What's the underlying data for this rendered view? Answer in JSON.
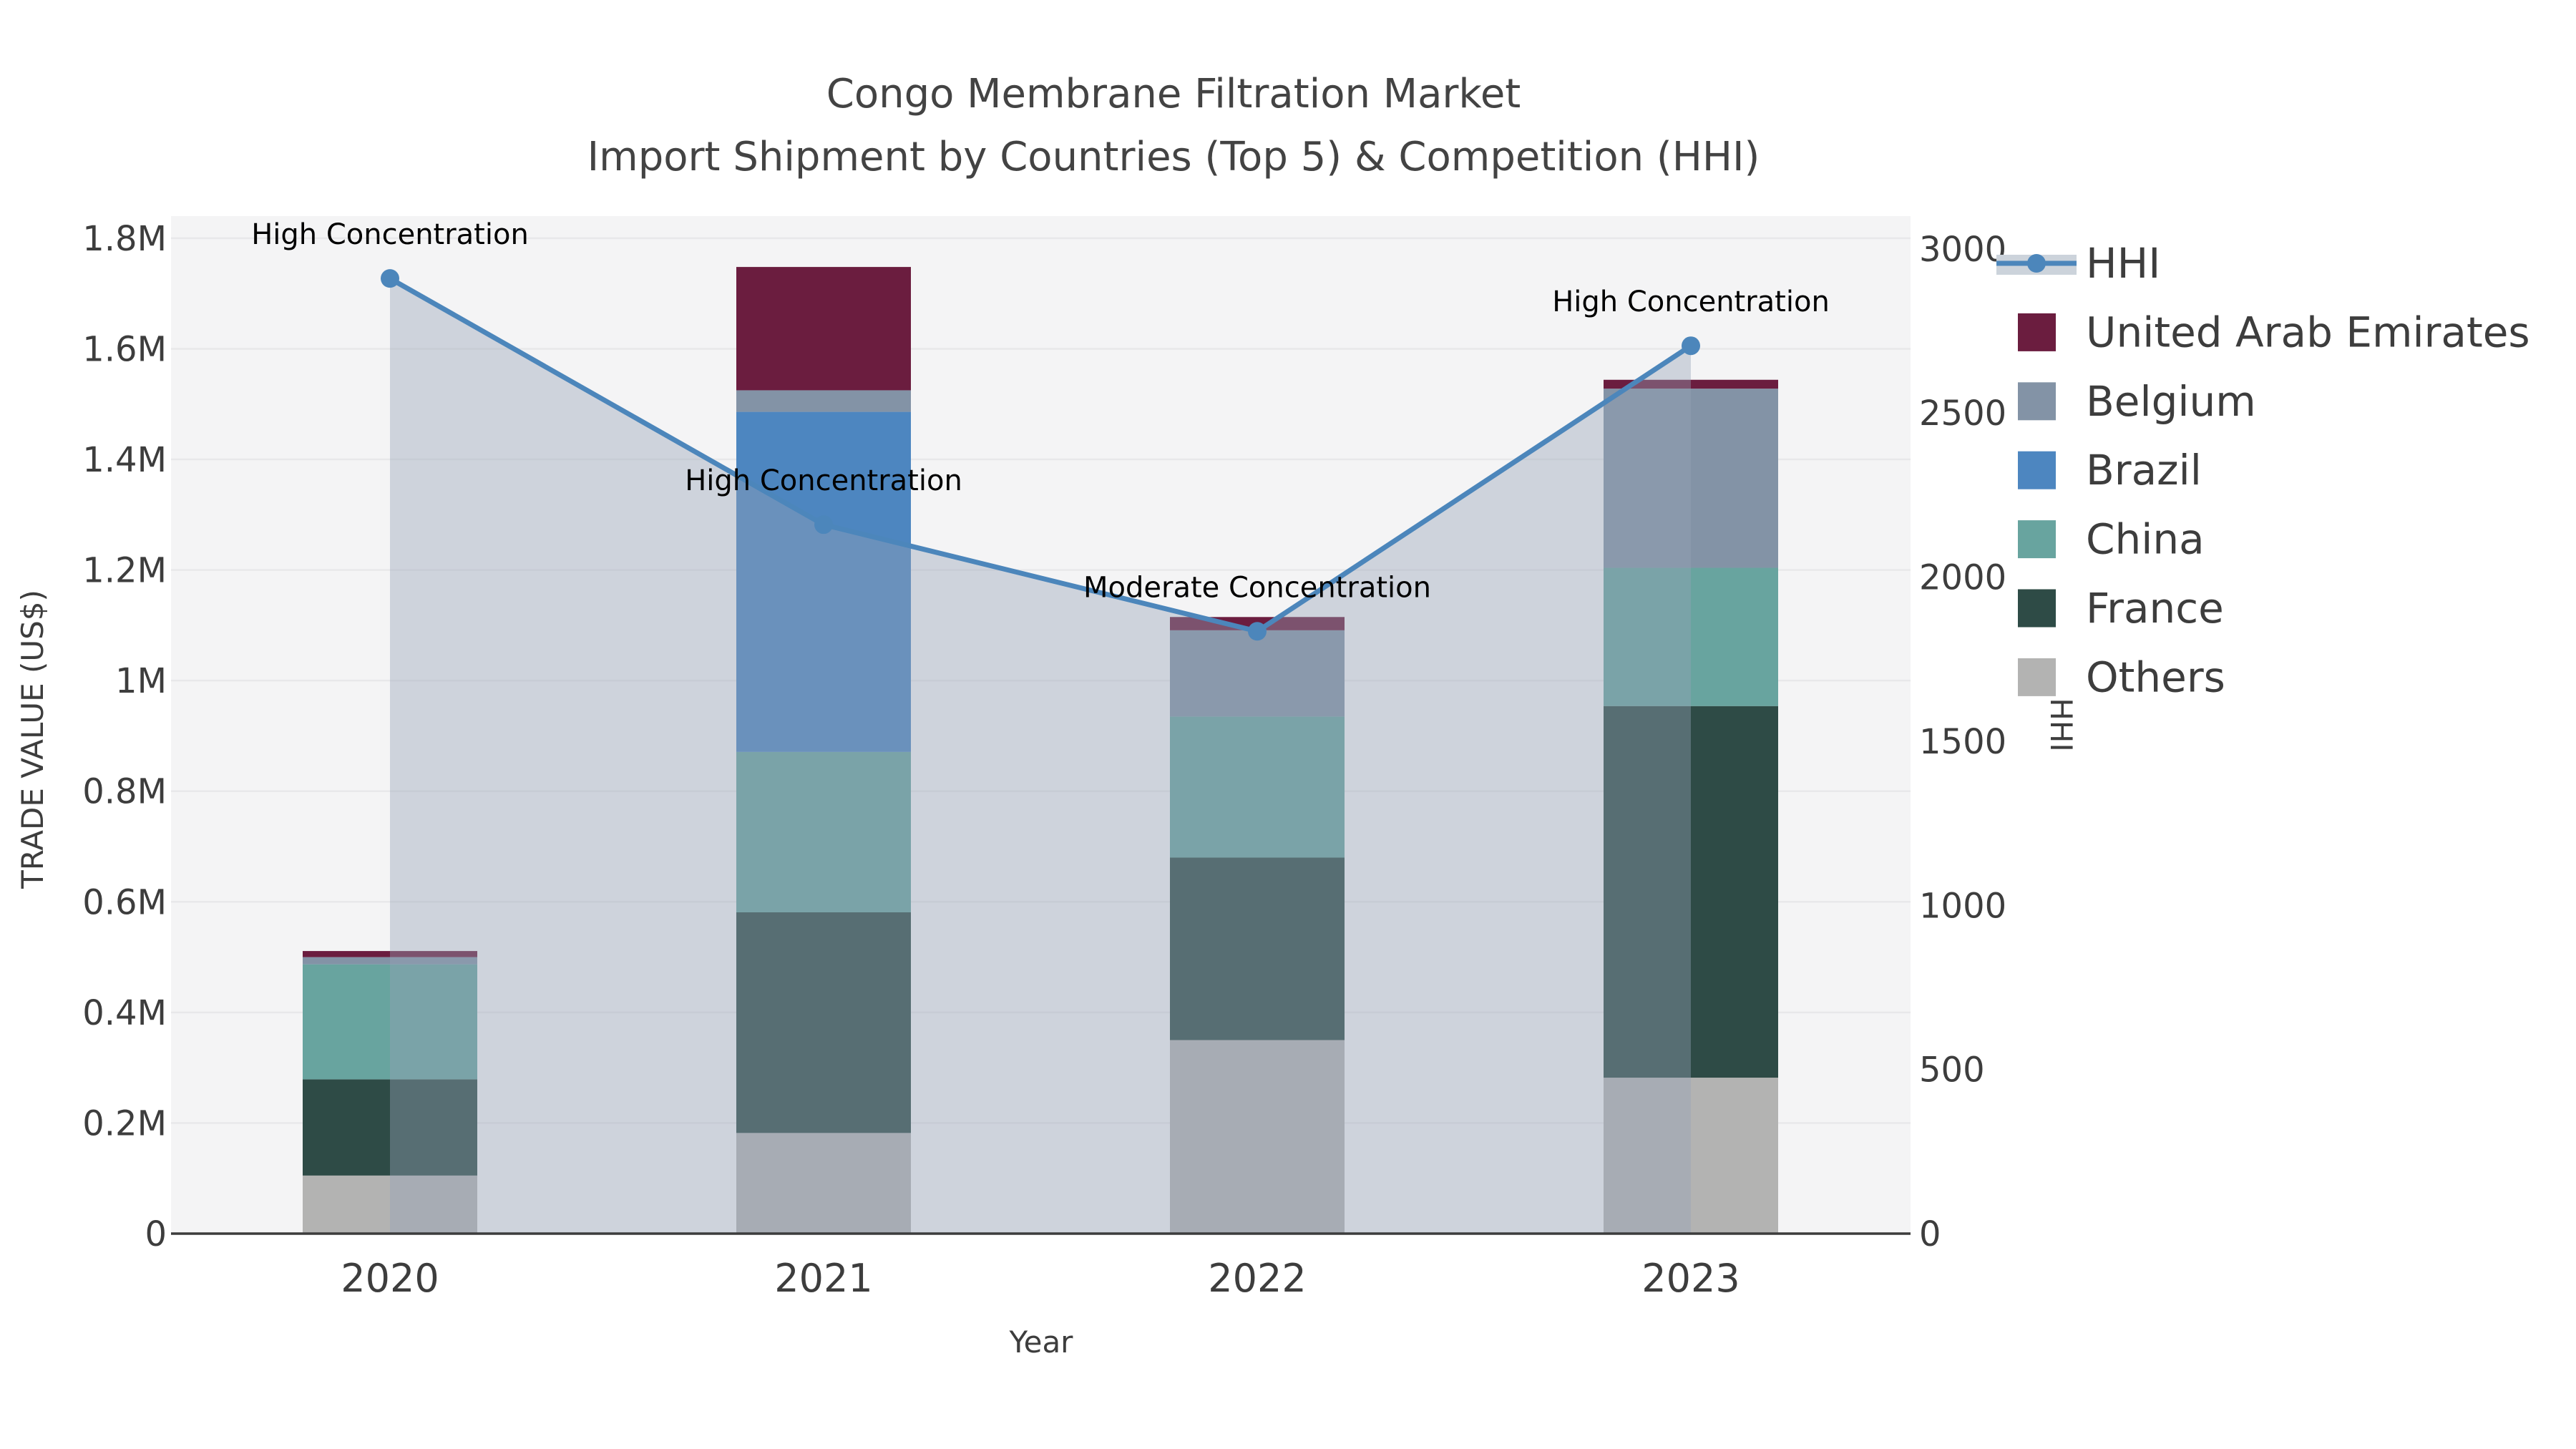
{
  "title": {
    "line1": "Congo Membrane Filtration Market",
    "line2": "Import Shipment by Countries (Top 5) & Competition (HHI)"
  },
  "axes": {
    "x": {
      "label": "Year",
      "ticks": [
        "2020",
        "2021",
        "2022",
        "2023"
      ]
    },
    "left": {
      "label": "TRADE VALUE (US$)",
      "ticks": [
        {
          "value": 0.0,
          "text": "0"
        },
        {
          "value": 0.2,
          "text": "0.2M"
        },
        {
          "value": 0.4,
          "text": "0.4M"
        },
        {
          "value": 0.6,
          "text": "0.6M"
        },
        {
          "value": 0.8,
          "text": "0.8M"
        },
        {
          "value": 1.0,
          "text": "1M"
        },
        {
          "value": 1.2,
          "text": "1.2M"
        },
        {
          "value": 1.4,
          "text": "1.4M"
        },
        {
          "value": 1.6,
          "text": "1.6M"
        },
        {
          "value": 1.8,
          "text": "1.8M"
        }
      ]
    },
    "right": {
      "label": "HHI",
      "ticks": [
        {
          "value": 0,
          "text": "0"
        },
        {
          "value": 500,
          "text": "500"
        },
        {
          "value": 1000,
          "text": "1000"
        },
        {
          "value": 1500,
          "text": "1500"
        },
        {
          "value": 2000,
          "text": "2000"
        },
        {
          "value": 2500,
          "text": "2500"
        },
        {
          "value": 3000,
          "text": "3000"
        }
      ]
    }
  },
  "legend": {
    "items": [
      {
        "label": "HHI",
        "type": "line",
        "color": "#4c86bb",
        "band": "#ccd3db"
      },
      {
        "label": "United Arab Emirates",
        "type": "swatch",
        "color": "#6b1d3f"
      },
      {
        "label": "Belgium",
        "type": "swatch",
        "color": "#8393a6"
      },
      {
        "label": "Brazil",
        "type": "swatch",
        "color": "#4d86c0"
      },
      {
        "label": "China",
        "type": "swatch",
        "color": "#68a49f"
      },
      {
        "label": "France",
        "type": "swatch",
        "color": "#2e4b46"
      },
      {
        "label": "Others",
        "type": "swatch",
        "color": "#b3b3b2"
      }
    ]
  },
  "annotations": [
    {
      "year": "2020",
      "text": "High Concentration"
    },
    {
      "year": "2021",
      "text": "High Concentration"
    },
    {
      "year": "2022",
      "text": "Moderate Concentration"
    },
    {
      "year": "2023",
      "text": "High Concentration"
    }
  ],
  "chart_data": {
    "type": "combo",
    "subtypes": [
      "stacked-bar",
      "line-area"
    ],
    "categories": [
      "2020",
      "2021",
      "2022",
      "2023"
    ],
    "bar_value_unit": "US$ millions",
    "series": [
      {
        "name": "Others",
        "color": "#b3b3b2",
        "values": [
          0.105,
          0.182,
          0.35,
          0.282
        ]
      },
      {
        "name": "France",
        "color": "#2e4b46",
        "values": [
          0.174,
          0.399,
          0.33,
          0.672
        ]
      },
      {
        "name": "China",
        "color": "#68a49f",
        "values": [
          0.208,
          0.29,
          0.255,
          0.25
        ]
      },
      {
        "name": "Brazil",
        "color": "#4d86c0",
        "values": [
          0.0,
          0.615,
          0.0,
          0.0
        ]
      },
      {
        "name": "Belgium",
        "color": "#8393a6",
        "values": [
          0.013,
          0.039,
          0.156,
          0.324
        ]
      },
      {
        "name": "United Arab Emirates",
        "color": "#6b1d3f",
        "values": [
          0.011,
          0.223,
          0.024,
          0.016
        ]
      }
    ],
    "bar_totals": [
      0.511,
      1.748,
      1.115,
      1.544
    ],
    "line_series": {
      "name": "HHI",
      "axis": "right",
      "color": "#4c86bb",
      "area_fill": "rgba(150,162,182,0.40)",
      "values": [
        2910,
        2160,
        1835,
        2705
      ]
    },
    "left_axis_range_musd": [
      0,
      1.84
    ],
    "right_axis_range": [
      0,
      3100
    ],
    "grid": "horizontal",
    "legend_position": "right",
    "plot_background": "#f4f4f5",
    "gridline_color": "#e8e8ea",
    "axis_line_color": "#3c3c3c",
    "text_color": "#3d3d3d",
    "annotation_color": "#000000"
  }
}
